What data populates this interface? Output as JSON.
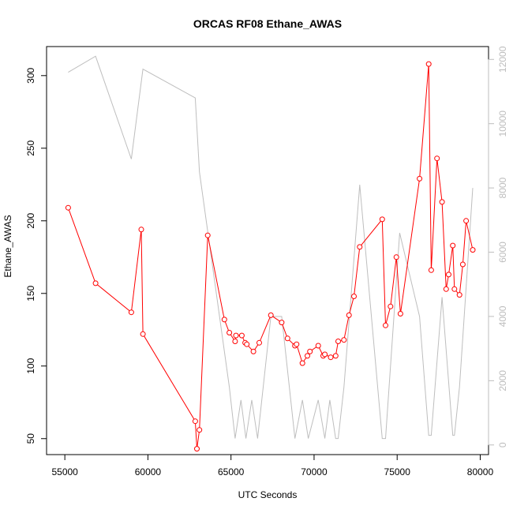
{
  "chart_data": {
    "type": "line",
    "title": "ORCAS RF08 Ethane_AWAS",
    "xlabel": "UTC Seconds",
    "ylabel": "Ethane_AWAS",
    "xlim": [
      53900,
      80500
    ],
    "ylim": [
      39,
      320
    ],
    "y2lim": [
      -300,
      12400
    ],
    "x_ticks": [
      55000,
      60000,
      65000,
      70000,
      75000,
      80000
    ],
    "y_ticks": [
      50,
      100,
      150,
      200,
      250,
      300
    ],
    "y2_ticks": [
      0,
      2000,
      4000,
      6000,
      8000,
      10000,
      12000
    ],
    "colors": {
      "primary": "#ff0000",
      "secondary": "#bebebe"
    },
    "series": [
      {
        "axis": "left",
        "color": "#ff0000",
        "markers": "open-circle",
        "points": [
          [
            55200,
            209
          ],
          [
            56850,
            157
          ],
          [
            59000,
            137
          ],
          [
            59600,
            194
          ],
          [
            59700,
            122
          ],
          [
            62850,
            62
          ],
          [
            62950,
            43
          ],
          [
            63100,
            56
          ],
          [
            63600,
            190
          ],
          [
            64600,
            132
          ],
          [
            64900,
            123
          ],
          [
            65250,
            117
          ],
          [
            65300,
            121
          ],
          [
            65650,
            121
          ],
          [
            65850,
            116
          ],
          [
            65950,
            115
          ],
          [
            66350,
            110
          ],
          [
            66700,
            116
          ],
          [
            67400,
            135
          ],
          [
            68050,
            130
          ],
          [
            68400,
            119
          ],
          [
            68850,
            114
          ],
          [
            68950,
            115
          ],
          [
            69300,
            102
          ],
          [
            69600,
            107
          ],
          [
            69750,
            110
          ],
          [
            70250,
            114
          ],
          [
            70550,
            107
          ],
          [
            70650,
            108
          ],
          [
            71000,
            106
          ],
          [
            71300,
            107
          ],
          [
            71450,
            117
          ],
          [
            71800,
            118
          ],
          [
            72100,
            135
          ],
          [
            72400,
            148
          ],
          [
            72750,
            182
          ],
          [
            74100,
            201
          ],
          [
            74300,
            128
          ],
          [
            74600,
            141
          ],
          [
            74950,
            175
          ],
          [
            75200,
            136
          ],
          [
            76350,
            229
          ],
          [
            76900,
            308
          ],
          [
            77050,
            166
          ],
          [
            77400,
            243
          ],
          [
            77700,
            213
          ],
          [
            77950,
            153
          ],
          [
            78100,
            163
          ],
          [
            78350,
            183
          ],
          [
            78450,
            153
          ],
          [
            78750,
            149
          ],
          [
            78950,
            170
          ],
          [
            79150,
            200
          ],
          [
            79550,
            180
          ]
        ]
      },
      {
        "axis": "right",
        "color": "#bebebe",
        "markers": "none",
        "points": [
          [
            55200,
            11600
          ],
          [
            56850,
            12100
          ],
          [
            59000,
            8900
          ],
          [
            59700,
            11700
          ],
          [
            62850,
            10800
          ],
          [
            63100,
            8500
          ],
          [
            64900,
            1800
          ],
          [
            65250,
            200
          ],
          [
            65600,
            1400
          ],
          [
            65900,
            200
          ],
          [
            66250,
            1400
          ],
          [
            66600,
            200
          ],
          [
            67400,
            4000
          ],
          [
            68050,
            4000
          ],
          [
            68850,
            200
          ],
          [
            69300,
            1400
          ],
          [
            69650,
            200
          ],
          [
            70250,
            1400
          ],
          [
            70650,
            200
          ],
          [
            70950,
            1400
          ],
          [
            71300,
            200
          ],
          [
            71450,
            200
          ],
          [
            71800,
            1800
          ],
          [
            72750,
            8100
          ],
          [
            74100,
            200
          ],
          [
            74300,
            200
          ],
          [
            75150,
            6600
          ],
          [
            76350,
            4000
          ],
          [
            76900,
            300
          ],
          [
            77050,
            300
          ],
          [
            77700,
            4600
          ],
          [
            78350,
            300
          ],
          [
            78450,
            300
          ],
          [
            78750,
            1800
          ],
          [
            79550,
            8000
          ]
        ]
      }
    ]
  }
}
